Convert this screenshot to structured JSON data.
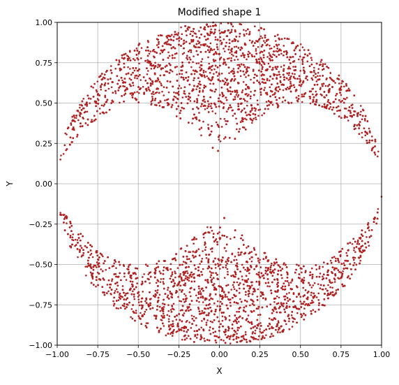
{
  "chart_data": {
    "type": "scatter",
    "title": "Modified shape 1",
    "xlabel": "X",
    "ylabel": "Y",
    "xlim": [
      -1.0,
      1.0
    ],
    "ylim": [
      -1.0,
      1.0
    ],
    "xticks": [
      -1.0,
      -0.75,
      -0.5,
      -0.25,
      0.0,
      0.25,
      0.5,
      0.75,
      1.0
    ],
    "yticks": [
      -1.0,
      -0.75,
      -0.5,
      -0.25,
      0.0,
      0.25,
      0.5,
      0.75,
      1.0
    ],
    "xtick_labels": [
      "−1.00",
      "−0.75",
      "−0.50",
      "−0.25",
      "0.00",
      "0.25",
      "0.50",
      "0.75",
      "1.00"
    ],
    "ytick_labels": [
      "−1.00",
      "−0.75",
      "−0.50",
      "−0.25",
      "0.00",
      "0.25",
      "0.50",
      "0.75",
      "1.00"
    ],
    "grid": true,
    "point_color": "#b22222",
    "grid_color": "#b0b0b0",
    "description_of_region": {
      "shape": "unit disk",
      "upper_region": "y >= 0.5 + 0.35*(1 - cosine-like scallop); points inside unit circle above a scalloped lower boundary with lobes centered near x = -0.5, 0, 0.5",
      "lower_region": "mirror image of upper region",
      "gap": "horizontal band around y = 0 excluded except near the circle edge"
    },
    "series": [
      {
        "name": "",
        "sample_points": [
          [
            0.0,
            0.95
          ],
          [
            -0.25,
            0.9
          ],
          [
            0.25,
            0.9
          ],
          [
            -0.5,
            0.7
          ],
          [
            0.5,
            0.7
          ],
          [
            -0.75,
            0.55
          ],
          [
            0.75,
            0.55
          ],
          [
            0.0,
            0.3
          ],
          [
            -0.9,
            0.35
          ],
          [
            0.9,
            0.3
          ],
          [
            0.0,
            -0.95
          ],
          [
            -0.25,
            -0.9
          ],
          [
            0.25,
            -0.9
          ],
          [
            -0.5,
            -0.7
          ],
          [
            0.5,
            -0.7
          ],
          [
            -0.75,
            -0.55
          ],
          [
            0.75,
            -0.55
          ],
          [
            0.0,
            -0.3
          ],
          [
            -0.9,
            -0.35
          ],
          [
            0.9,
            -0.3
          ],
          [
            -0.98,
            0.15
          ],
          [
            1.0,
            -0.08
          ],
          [
            -0.98,
            -0.18
          ],
          [
            0.98,
            0.2
          ]
        ]
      }
    ]
  }
}
